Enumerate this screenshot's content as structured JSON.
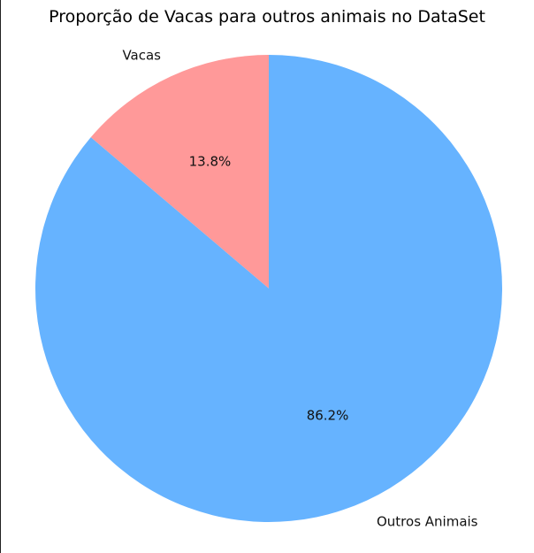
{
  "chart_data": {
    "type": "pie",
    "title": "Proporção de Vacas para outros animais no DataSet",
    "start_angle_deg": 90,
    "direction": "counterclockwise",
    "slices": [
      {
        "label": "Vacas",
        "value": 13.8,
        "pct_label": "13.8%",
        "color": "#ff9999"
      },
      {
        "label": "Outros Animais",
        "value": 86.2,
        "pct_label": "86.2%",
        "color": "#66b3ff"
      }
    ]
  }
}
